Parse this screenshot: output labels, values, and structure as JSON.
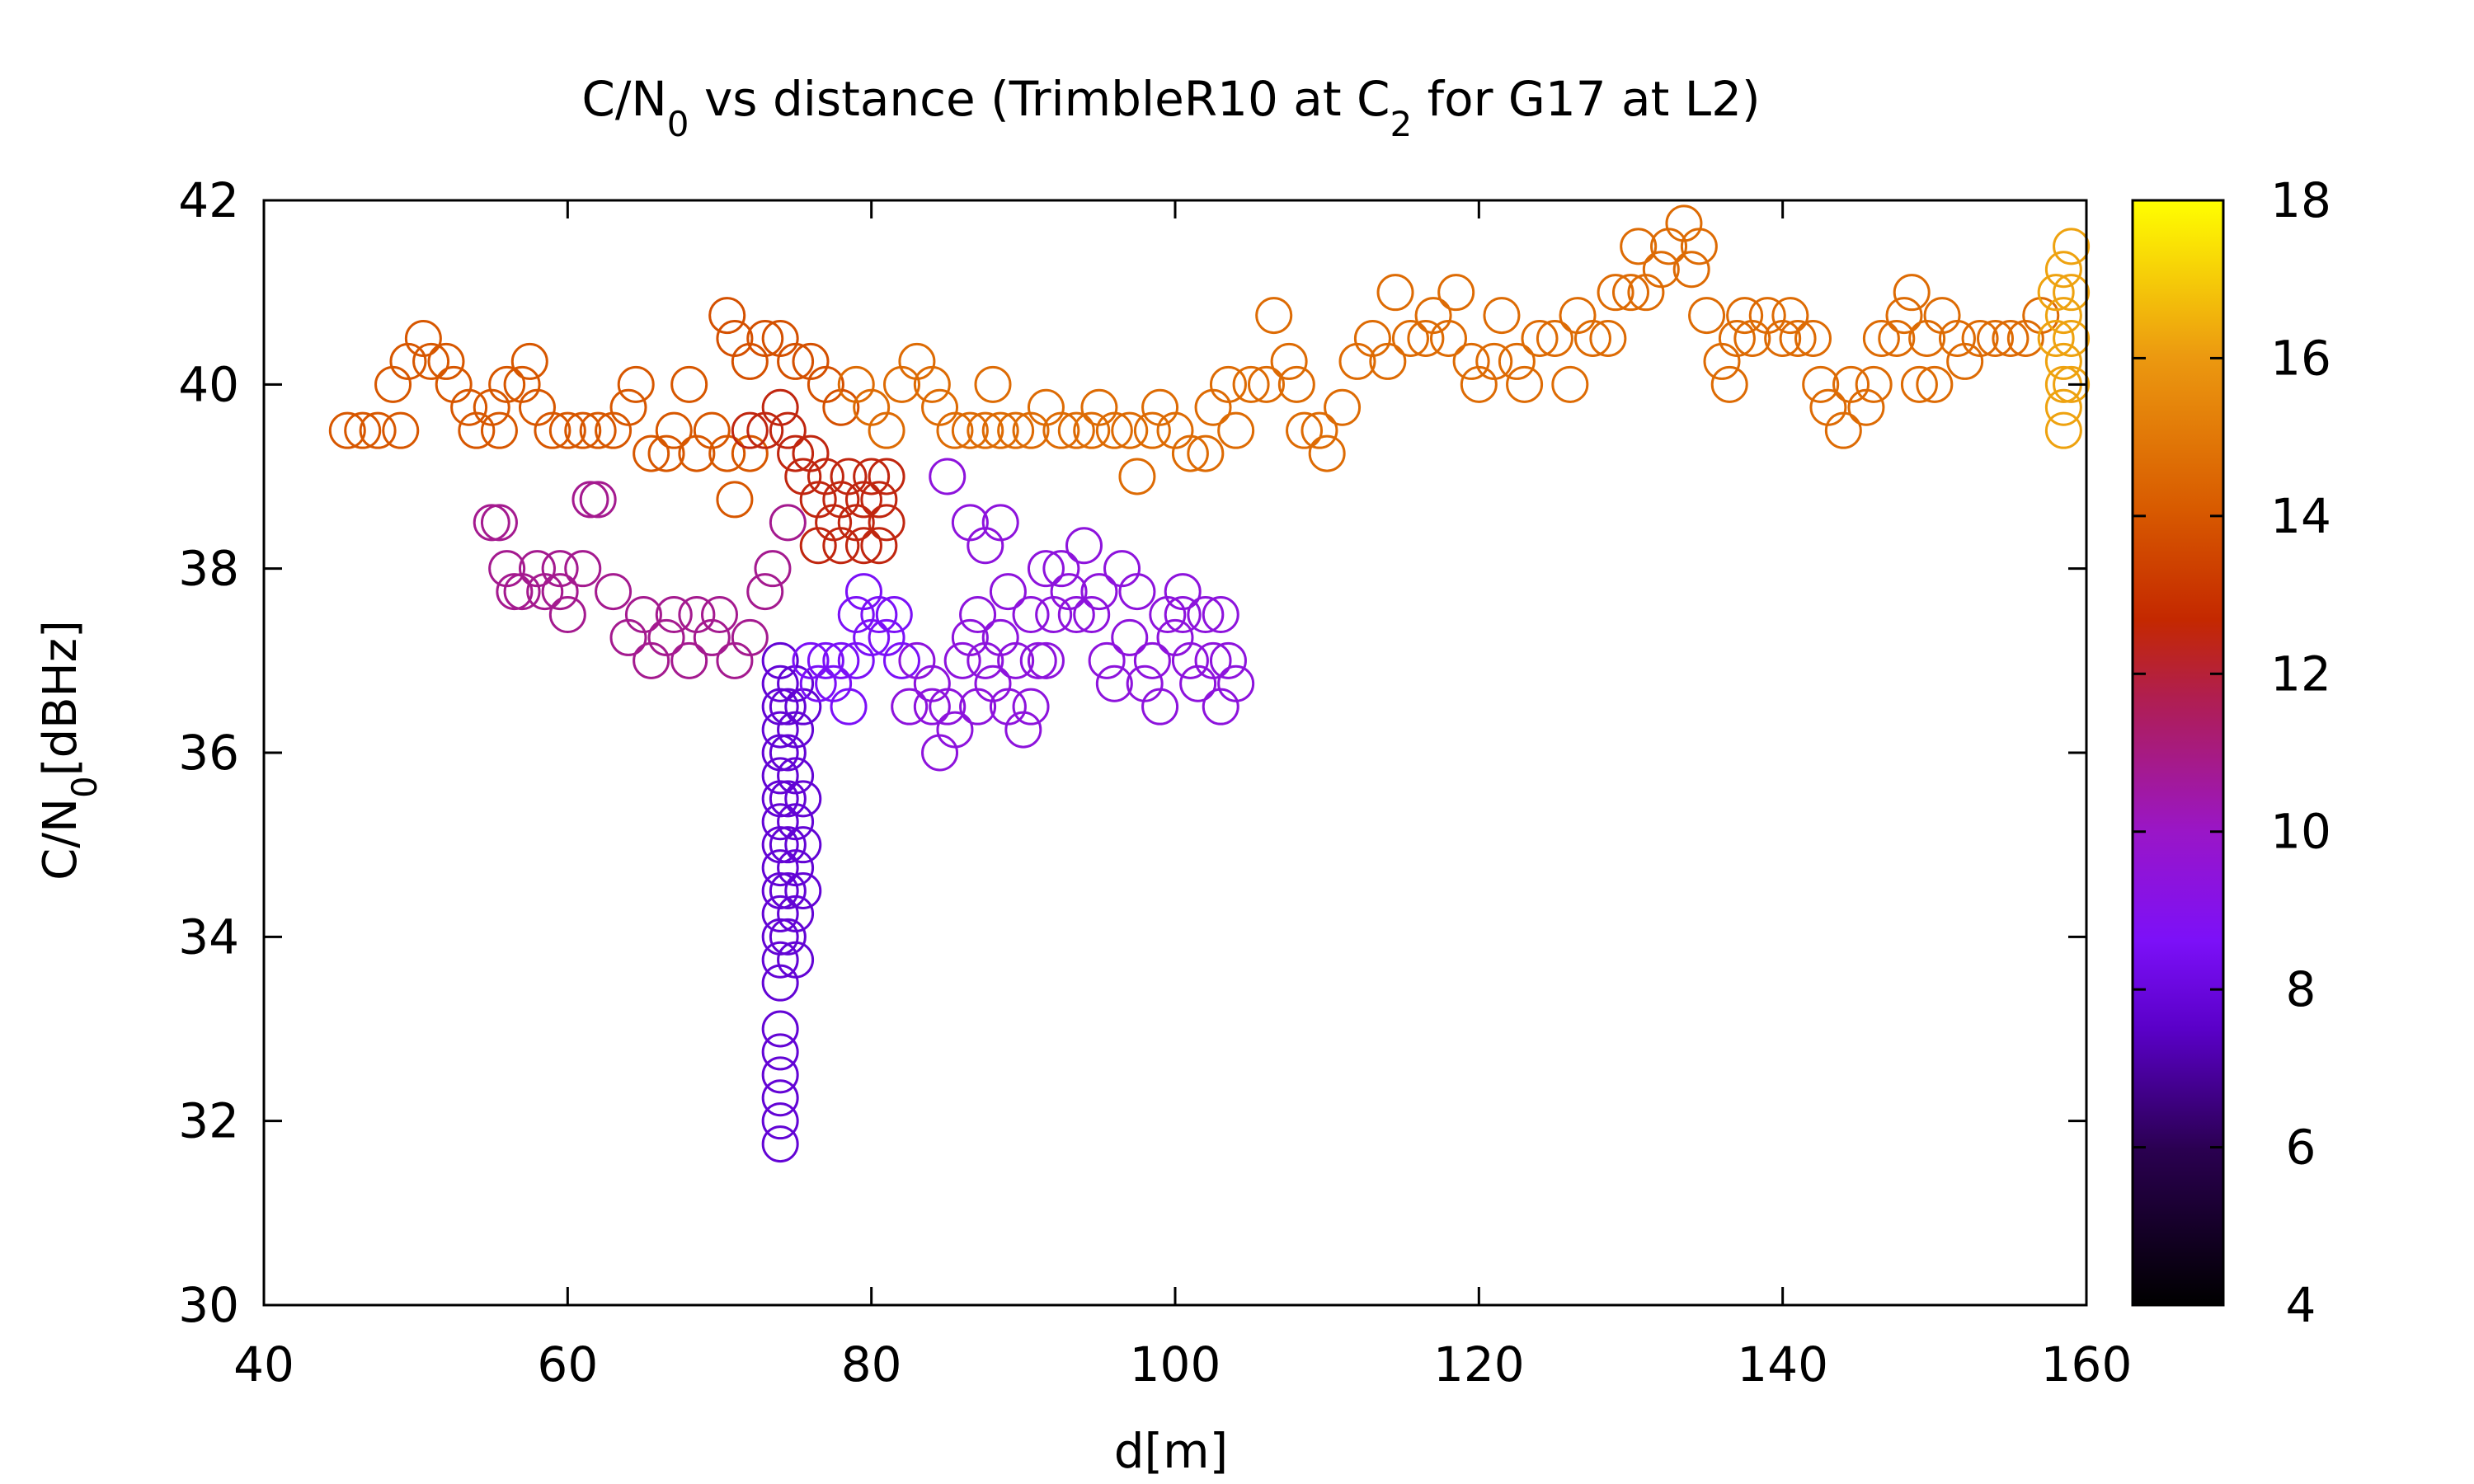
{
  "chart_data": {
    "type": "scatter",
    "title": {
      "part1": "C/N",
      "sub1": "0",
      "part2": " vs distance (TrimbleR10 at C",
      "sub2": "2",
      "part3": " for G17 at L2)"
    },
    "xlabel": "d[m]",
    "ylabel": {
      "part1": "C/N",
      "sub": "0",
      "part2": "[dBHz]"
    },
    "xlim": [
      40,
      160
    ],
    "ylim": [
      30,
      42
    ],
    "xticks": [
      40,
      60,
      80,
      100,
      120,
      140,
      160
    ],
    "yticks": [
      30,
      32,
      34,
      36,
      38,
      40,
      42
    ],
    "colorbar": {
      "min": 4,
      "max": 18,
      "ticks": [
        4,
        6,
        8,
        10,
        12,
        14,
        16,
        18
      ],
      "palette": "black-purple-red-orange-yellow"
    },
    "marker": "open-circle",
    "points": [
      [
        45.5,
        39.5,
        14.0
      ],
      [
        46.5,
        39.5,
        14.0
      ],
      [
        47.5,
        39.5,
        14.0
      ],
      [
        48.5,
        40.0,
        14.0
      ],
      [
        49.0,
        39.5,
        14.0
      ],
      [
        49.5,
        40.25,
        14.0
      ],
      [
        50.5,
        40.5,
        14.0
      ],
      [
        51.0,
        40.25,
        14.0
      ],
      [
        52.0,
        40.25,
        14.0
      ],
      [
        52.5,
        40.0,
        14.0
      ],
      [
        53.5,
        39.75,
        14.0
      ],
      [
        54.0,
        39.5,
        14.0
      ],
      [
        55.0,
        39.75,
        14.0
      ],
      [
        55.5,
        39.5,
        14.0
      ],
      [
        56.0,
        40.0,
        14.0
      ],
      [
        57.0,
        40.0,
        14.0
      ],
      [
        57.5,
        40.25,
        14.0
      ],
      [
        58.0,
        39.75,
        14.0
      ],
      [
        59.0,
        39.5,
        14.0
      ],
      [
        60.0,
        39.5,
        14.0
      ],
      [
        61.0,
        39.5,
        14.0
      ],
      [
        62.0,
        39.5,
        14.0
      ],
      [
        63.0,
        39.5,
        14.0
      ],
      [
        64.0,
        39.75,
        14.0
      ],
      [
        64.5,
        40.0,
        14.0
      ],
      [
        65.5,
        39.25,
        14.0
      ],
      [
        66.5,
        39.25,
        14.0
      ],
      [
        67.0,
        39.5,
        14.0
      ],
      [
        68.0,
        40.0,
        14.0
      ],
      [
        68.5,
        39.25,
        14.0
      ],
      [
        69.5,
        39.5,
        14.0
      ],
      [
        70.5,
        39.25,
        14.0
      ],
      [
        71.0,
        38.75,
        14.0
      ],
      [
        72.0,
        39.25,
        14.0
      ],
      [
        70.5,
        40.75,
        13.8
      ],
      [
        71.0,
        40.5,
        13.8
      ],
      [
        72.0,
        40.25,
        13.8
      ],
      [
        73.0,
        40.5,
        13.8
      ],
      [
        74.0,
        40.5,
        13.8
      ],
      [
        75.0,
        40.25,
        13.8
      ],
      [
        76.0,
        40.25,
        13.8
      ],
      [
        77.0,
        40.0,
        13.8
      ],
      [
        78.0,
        39.75,
        13.8
      ],
      [
        72.0,
        39.5,
        12.5
      ],
      [
        73.0,
        39.5,
        12.5
      ],
      [
        74.0,
        39.75,
        12.5
      ],
      [
        74.5,
        39.5,
        12.5
      ],
      [
        75.0,
        39.25,
        12.5
      ],
      [
        75.5,
        39.0,
        12.5
      ],
      [
        76.0,
        39.25,
        12.5
      ],
      [
        76.5,
        38.75,
        12.5
      ],
      [
        77.0,
        39.0,
        12.5
      ],
      [
        77.5,
        38.5,
        12.5
      ],
      [
        78.0,
        38.75,
        12.5
      ],
      [
        78.5,
        39.0,
        12.5
      ],
      [
        79.0,
        38.5,
        12.5
      ],
      [
        79.5,
        38.75,
        12.5
      ],
      [
        80.0,
        39.0,
        12.5
      ],
      [
        80.5,
        38.75,
        12.5
      ],
      [
        81.0,
        38.5,
        12.5
      ],
      [
        76.5,
        38.25,
        12.5
      ],
      [
        78.0,
        38.25,
        12.5
      ],
      [
        79.5,
        38.25,
        12.5
      ],
      [
        80.5,
        38.25,
        12.5
      ],
      [
        81.0,
        39.0,
        12.5
      ],
      [
        79.0,
        40.0,
        14.6
      ],
      [
        80.0,
        39.75,
        14.6
      ],
      [
        81.0,
        39.5,
        14.6
      ],
      [
        82.0,
        40.0,
        14.6
      ],
      [
        83.0,
        40.25,
        14.6
      ],
      [
        84.0,
        40.0,
        14.6
      ],
      [
        84.5,
        39.75,
        14.6
      ],
      [
        85.5,
        39.5,
        14.6
      ],
      [
        86.5,
        39.5,
        14.6
      ],
      [
        87.5,
        39.5,
        14.6
      ],
      [
        88.0,
        40.0,
        14.6
      ],
      [
        88.5,
        39.5,
        14.6
      ],
      [
        89.5,
        39.5,
        14.6
      ],
      [
        90.5,
        39.5,
        14.6
      ],
      [
        91.5,
        39.75,
        14.6
      ],
      [
        92.5,
        39.5,
        14.6
      ],
      [
        93.5,
        39.5,
        14.6
      ],
      [
        94.5,
        39.5,
        14.6
      ],
      [
        95.0,
        39.75,
        14.6
      ],
      [
        96.0,
        39.5,
        14.6
      ],
      [
        97.0,
        39.5,
        14.6
      ],
      [
        97.5,
        39.0,
        14.6
      ],
      [
        98.5,
        39.5,
        14.6
      ],
      [
        99.0,
        39.75,
        14.6
      ],
      [
        100.0,
        39.5,
        14.6
      ],
      [
        101.0,
        39.25,
        14.6
      ],
      [
        102.0,
        39.25,
        14.6
      ],
      [
        102.5,
        39.75,
        14.6
      ],
      [
        103.5,
        40.0,
        14.6
      ],
      [
        104.0,
        39.5,
        14.6
      ],
      [
        105.0,
        40.0,
        14.6
      ],
      [
        106.0,
        40.0,
        14.6
      ],
      [
        106.5,
        40.75,
        14.6
      ],
      [
        107.5,
        40.25,
        14.6
      ],
      [
        108.0,
        40.0,
        14.6
      ],
      [
        108.5,
        39.5,
        14.6
      ],
      [
        109.5,
        39.5,
        14.6
      ],
      [
        110.0,
        39.25,
        14.6
      ],
      [
        111.0,
        39.75,
        14.6
      ],
      [
        112.0,
        40.25,
        14.6
      ],
      [
        113.0,
        40.5,
        14.6
      ],
      [
        114.0,
        40.25,
        14.6
      ],
      [
        114.5,
        41.0,
        14.6
      ],
      [
        115.5,
        40.5,
        14.6
      ],
      [
        116.5,
        40.5,
        14.6
      ],
      [
        117.0,
        40.75,
        14.6
      ],
      [
        118.0,
        40.5,
        14.6
      ],
      [
        118.5,
        41.0,
        14.6
      ],
      [
        119.5,
        40.25,
        14.6
      ],
      [
        120.0,
        40.0,
        14.6
      ],
      [
        121.0,
        40.25,
        14.6
      ],
      [
        121.5,
        40.75,
        14.6
      ],
      [
        122.5,
        40.25,
        14.6
      ],
      [
        123.0,
        40.0,
        14.6
      ],
      [
        124.0,
        40.5,
        14.6
      ],
      [
        125.0,
        40.5,
        14.6
      ],
      [
        126.0,
        40.0,
        14.6
      ],
      [
        126.5,
        40.75,
        14.6
      ],
      [
        127.5,
        40.5,
        14.6
      ],
      [
        128.5,
        40.5,
        14.6
      ],
      [
        129.0,
        41.0,
        14.6
      ],
      [
        130.0,
        41.0,
        14.6
      ],
      [
        130.5,
        41.5,
        14.6
      ],
      [
        131.0,
        41.0,
        14.6
      ],
      [
        132.0,
        41.25,
        14.6
      ],
      [
        132.5,
        41.5,
        14.6
      ],
      [
        133.5,
        41.75,
        14.6
      ],
      [
        134.0,
        41.25,
        14.6
      ],
      [
        134.5,
        41.5,
        14.6
      ],
      [
        135.0,
        40.75,
        14.6
      ],
      [
        136.0,
        40.25,
        14.6
      ],
      [
        136.5,
        40.0,
        14.6
      ],
      [
        137.0,
        40.5,
        14.6
      ],
      [
        137.5,
        40.75,
        14.6
      ],
      [
        138.0,
        40.5,
        14.6
      ],
      [
        139.0,
        40.75,
        14.6
      ],
      [
        140.0,
        40.5,
        14.6
      ],
      [
        140.5,
        40.75,
        14.6
      ],
      [
        141.0,
        40.5,
        14.6
      ],
      [
        142.0,
        40.5,
        14.6
      ],
      [
        142.5,
        40.0,
        14.6
      ],
      [
        143.0,
        39.75,
        14.6
      ],
      [
        144.0,
        39.5,
        14.6
      ],
      [
        144.5,
        40.0,
        14.6
      ],
      [
        145.5,
        39.75,
        14.6
      ],
      [
        146.0,
        40.0,
        14.6
      ],
      [
        146.5,
        40.5,
        14.6
      ],
      [
        147.5,
        40.5,
        14.6
      ],
      [
        148.0,
        40.75,
        14.6
      ],
      [
        148.5,
        41.0,
        14.6
      ],
      [
        149.0,
        40.0,
        14.6
      ],
      [
        149.5,
        40.5,
        14.6
      ],
      [
        150.0,
        40.0,
        14.6
      ],
      [
        150.5,
        40.75,
        14.6
      ],
      [
        151.5,
        40.5,
        14.6
      ],
      [
        152.0,
        40.25,
        14.6
      ],
      [
        153.0,
        40.5,
        14.6
      ],
      [
        154.0,
        40.5,
        14.6
      ],
      [
        155.0,
        40.5,
        14.6
      ],
      [
        156.0,
        40.5,
        14.6
      ],
      [
        157.0,
        40.75,
        14.6
      ],
      [
        158.0,
        41.0,
        16.2
      ],
      [
        158.5,
        41.25,
        16.2
      ],
      [
        158.0,
        40.5,
        16.2
      ],
      [
        158.5,
        40.75,
        16.2
      ],
      [
        158.5,
        40.25,
        16.2
      ],
      [
        158.5,
        40.0,
        16.2
      ],
      [
        158.5,
        39.75,
        16.2
      ],
      [
        158.5,
        39.5,
        16.2
      ],
      [
        159.0,
        41.5,
        16.2
      ],
      [
        159.0,
        41.0,
        16.2
      ],
      [
        159.0,
        40.5,
        16.2
      ],
      [
        159.0,
        40.0,
        16.2
      ],
      [
        59.5,
        38.0,
        10.8
      ],
      [
        56.0,
        38.0,
        10.8
      ],
      [
        57.0,
        37.75,
        10.8
      ],
      [
        58.0,
        38.0,
        10.8
      ],
      [
        58.5,
        37.75,
        10.8
      ],
      [
        59.5,
        37.75,
        10.8
      ],
      [
        60.0,
        37.5,
        10.8
      ],
      [
        61.0,
        38.0,
        10.8
      ],
      [
        61.5,
        38.75,
        10.8
      ],
      [
        62.0,
        38.75,
        10.8
      ],
      [
        55.0,
        38.5,
        10.8
      ],
      [
        55.5,
        38.5,
        10.8
      ],
      [
        56.5,
        37.75,
        10.8
      ],
      [
        63.0,
        37.75,
        10.8
      ],
      [
        64.0,
        37.25,
        10.8
      ],
      [
        65.0,
        37.5,
        10.8
      ],
      [
        65.5,
        37.0,
        10.8
      ],
      [
        66.5,
        37.25,
        10.8
      ],
      [
        67.0,
        37.5,
        10.8
      ],
      [
        68.0,
        37.0,
        10.8
      ],
      [
        68.5,
        37.5,
        10.8
      ],
      [
        69.5,
        37.25,
        10.8
      ],
      [
        70.0,
        37.5,
        10.8
      ],
      [
        71.0,
        37.0,
        10.8
      ],
      [
        72.0,
        37.25,
        10.8
      ],
      [
        73.0,
        37.75,
        10.8
      ],
      [
        73.5,
        38.0,
        10.8
      ],
      [
        74.5,
        38.5,
        10.8
      ],
      [
        74.0,
        37.0,
        7.8
      ],
      [
        74.0,
        36.75,
        7.8
      ],
      [
        74.0,
        36.5,
        7.8
      ],
      [
        74.0,
        36.25,
        7.8
      ],
      [
        74.0,
        36.0,
        7.8
      ],
      [
        74.0,
        35.75,
        7.8
      ],
      [
        74.0,
        35.5,
        7.8
      ],
      [
        74.0,
        35.25,
        7.8
      ],
      [
        74.0,
        35.0,
        7.8
      ],
      [
        74.0,
        34.75,
        7.8
      ],
      [
        74.0,
        34.5,
        7.8
      ],
      [
        74.0,
        34.25,
        7.8
      ],
      [
        74.0,
        34.0,
        7.8
      ],
      [
        74.0,
        33.75,
        7.8
      ],
      [
        74.0,
        33.5,
        7.8
      ],
      [
        74.0,
        33.0,
        7.8
      ],
      [
        74.0,
        32.75,
        7.8
      ],
      [
        74.0,
        32.5,
        7.8
      ],
      [
        74.0,
        32.25,
        7.8
      ],
      [
        74.0,
        32.0,
        7.8
      ],
      [
        74.0,
        31.75,
        7.8
      ],
      [
        74.5,
        36.5,
        7.8
      ],
      [
        74.5,
        36.0,
        7.8
      ],
      [
        74.5,
        35.5,
        7.8
      ],
      [
        74.5,
        35.0,
        7.8
      ],
      [
        74.5,
        34.5,
        7.8
      ],
      [
        74.5,
        34.0,
        7.8
      ],
      [
        75.0,
        36.75,
        7.8
      ],
      [
        75.0,
        36.25,
        7.8
      ],
      [
        75.0,
        35.75,
        7.8
      ],
      [
        75.0,
        35.25,
        7.8
      ],
      [
        75.0,
        34.75,
        7.8
      ],
      [
        75.0,
        34.25,
        7.8
      ],
      [
        75.0,
        33.75,
        7.8
      ],
      [
        75.5,
        36.5,
        7.8
      ],
      [
        75.5,
        35.5,
        7.8
      ],
      [
        75.5,
        35.0,
        7.8
      ],
      [
        75.5,
        34.5,
        7.8
      ],
      [
        76.0,
        37.0,
        8.6
      ],
      [
        77.0,
        37.0,
        8.6
      ],
      [
        78.0,
        37.0,
        8.6
      ],
      [
        79.0,
        37.0,
        8.6
      ],
      [
        80.0,
        37.25,
        8.6
      ],
      [
        80.5,
        37.5,
        8.6
      ],
      [
        81.0,
        37.25,
        8.6
      ],
      [
        82.0,
        37.0,
        8.6
      ],
      [
        79.5,
        37.75,
        8.6
      ],
      [
        81.5,
        37.5,
        8.6
      ],
      [
        78.5,
        36.5,
        8.6
      ],
      [
        77.5,
        36.75,
        8.6
      ],
      [
        76.5,
        36.75,
        8.6
      ],
      [
        79.0,
        37.5,
        8.6
      ],
      [
        83.0,
        37.0,
        9.4
      ],
      [
        84.0,
        36.5,
        9.4
      ],
      [
        85.0,
        36.5,
        9.4
      ],
      [
        85.5,
        36.25,
        9.4
      ],
      [
        84.5,
        36.0,
        9.4
      ],
      [
        86.0,
        37.0,
        9.4
      ],
      [
        86.5,
        37.25,
        9.4
      ],
      [
        87.0,
        37.5,
        9.4
      ],
      [
        87.5,
        37.0,
        9.4
      ],
      [
        88.0,
        36.75,
        9.4
      ],
      [
        88.5,
        37.25,
        9.4
      ],
      [
        89.0,
        36.5,
        9.4
      ],
      [
        89.5,
        37.0,
        9.4
      ],
      [
        90.0,
        36.25,
        9.4
      ],
      [
        90.5,
        37.5,
        9.4
      ],
      [
        91.0,
        37.0,
        9.4
      ],
      [
        91.5,
        38.0,
        9.4
      ],
      [
        92.0,
        37.5,
        9.4
      ],
      [
        92.5,
        38.0,
        9.4
      ],
      [
        93.0,
        37.75,
        9.4
      ],
      [
        93.5,
        37.5,
        9.4
      ],
      [
        94.0,
        38.25,
        9.4
      ],
      [
        94.5,
        37.5,
        9.4
      ],
      [
        95.0,
        37.75,
        9.4
      ],
      [
        95.5,
        37.0,
        9.4
      ],
      [
        96.0,
        36.75,
        9.4
      ],
      [
        96.5,
        38.0,
        9.4
      ],
      [
        97.0,
        37.25,
        9.4
      ],
      [
        97.5,
        37.75,
        9.4
      ],
      [
        98.0,
        36.75,
        9.4
      ],
      [
        98.5,
        37.0,
        9.4
      ],
      [
        99.0,
        36.5,
        9.4
      ],
      [
        99.5,
        37.5,
        9.4
      ],
      [
        100.0,
        37.25,
        9.4
      ],
      [
        100.5,
        37.75,
        9.4
      ],
      [
        101.0,
        37.0,
        9.4
      ],
      [
        101.5,
        36.75,
        9.4
      ],
      [
        102.0,
        37.5,
        9.4
      ],
      [
        102.5,
        37.0,
        9.4
      ],
      [
        103.0,
        36.5,
        9.4
      ],
      [
        103.5,
        37.0,
        9.4
      ],
      [
        104.0,
        36.75,
        9.4
      ],
      [
        85.0,
        39.0,
        9.4
      ],
      [
        86.5,
        38.5,
        9.4
      ],
      [
        87.5,
        38.25,
        9.4
      ],
      [
        88.5,
        38.5,
        9.4
      ],
      [
        89.0,
        37.75,
        9.4
      ],
      [
        90.5,
        36.5,
        9.4
      ],
      [
        91.5,
        37.0,
        9.4
      ],
      [
        84.0,
        36.75,
        9.4
      ],
      [
        82.5,
        36.5,
        9.4
      ],
      [
        87.0,
        36.5,
        9.4
      ],
      [
        100.5,
        37.5,
        9.4
      ],
      [
        103.0,
        37.5,
        9.4
      ]
    ]
  }
}
